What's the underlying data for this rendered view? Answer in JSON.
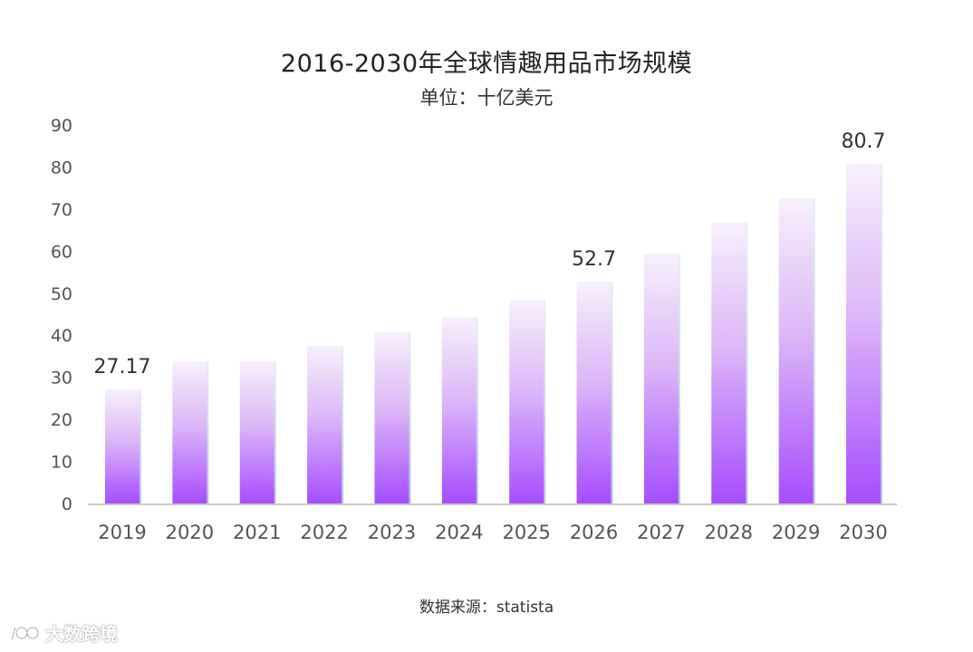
{
  "header": {
    "title": "2016-2030年全球情趣用品市场规模",
    "subtitle": "单位：十亿美元"
  },
  "footer": {
    "source": "数据来源：statista"
  },
  "watermark": {
    "text": "大数跨境",
    "icon": "brand-logo-icon"
  },
  "colors": {
    "bar_top": "#f7f0fc",
    "bar_bottom": "#a64dff",
    "axis": "#cccccc",
    "tick_text": "#555555",
    "label_text": "#333333"
  },
  "chart_data": {
    "type": "bar",
    "title": "2016-2030年全球情趣用品市场规模",
    "subtitle": "单位：十亿美元",
    "categories": [
      "2019",
      "2020",
      "2021",
      "2022",
      "2023",
      "2024",
      "2025",
      "2026",
      "2027",
      "2028",
      "2029",
      "2030"
    ],
    "values": [
      27.17,
      33.8,
      33.9,
      37.4,
      40.8,
      44.3,
      48.3,
      52.7,
      59.4,
      66.8,
      72.6,
      80.7
    ],
    "data_labels": [
      {
        "index": 0,
        "text": "27.17"
      },
      {
        "index": 7,
        "text": "52.7"
      },
      {
        "index": 11,
        "text": "80.7"
      }
    ],
    "yticks": [
      0,
      10,
      20,
      30,
      40,
      50,
      60,
      70,
      80,
      90
    ],
    "ylim": [
      0,
      90
    ],
    "xlabel": "",
    "ylabel": "",
    "grid": false,
    "legend": "none"
  }
}
